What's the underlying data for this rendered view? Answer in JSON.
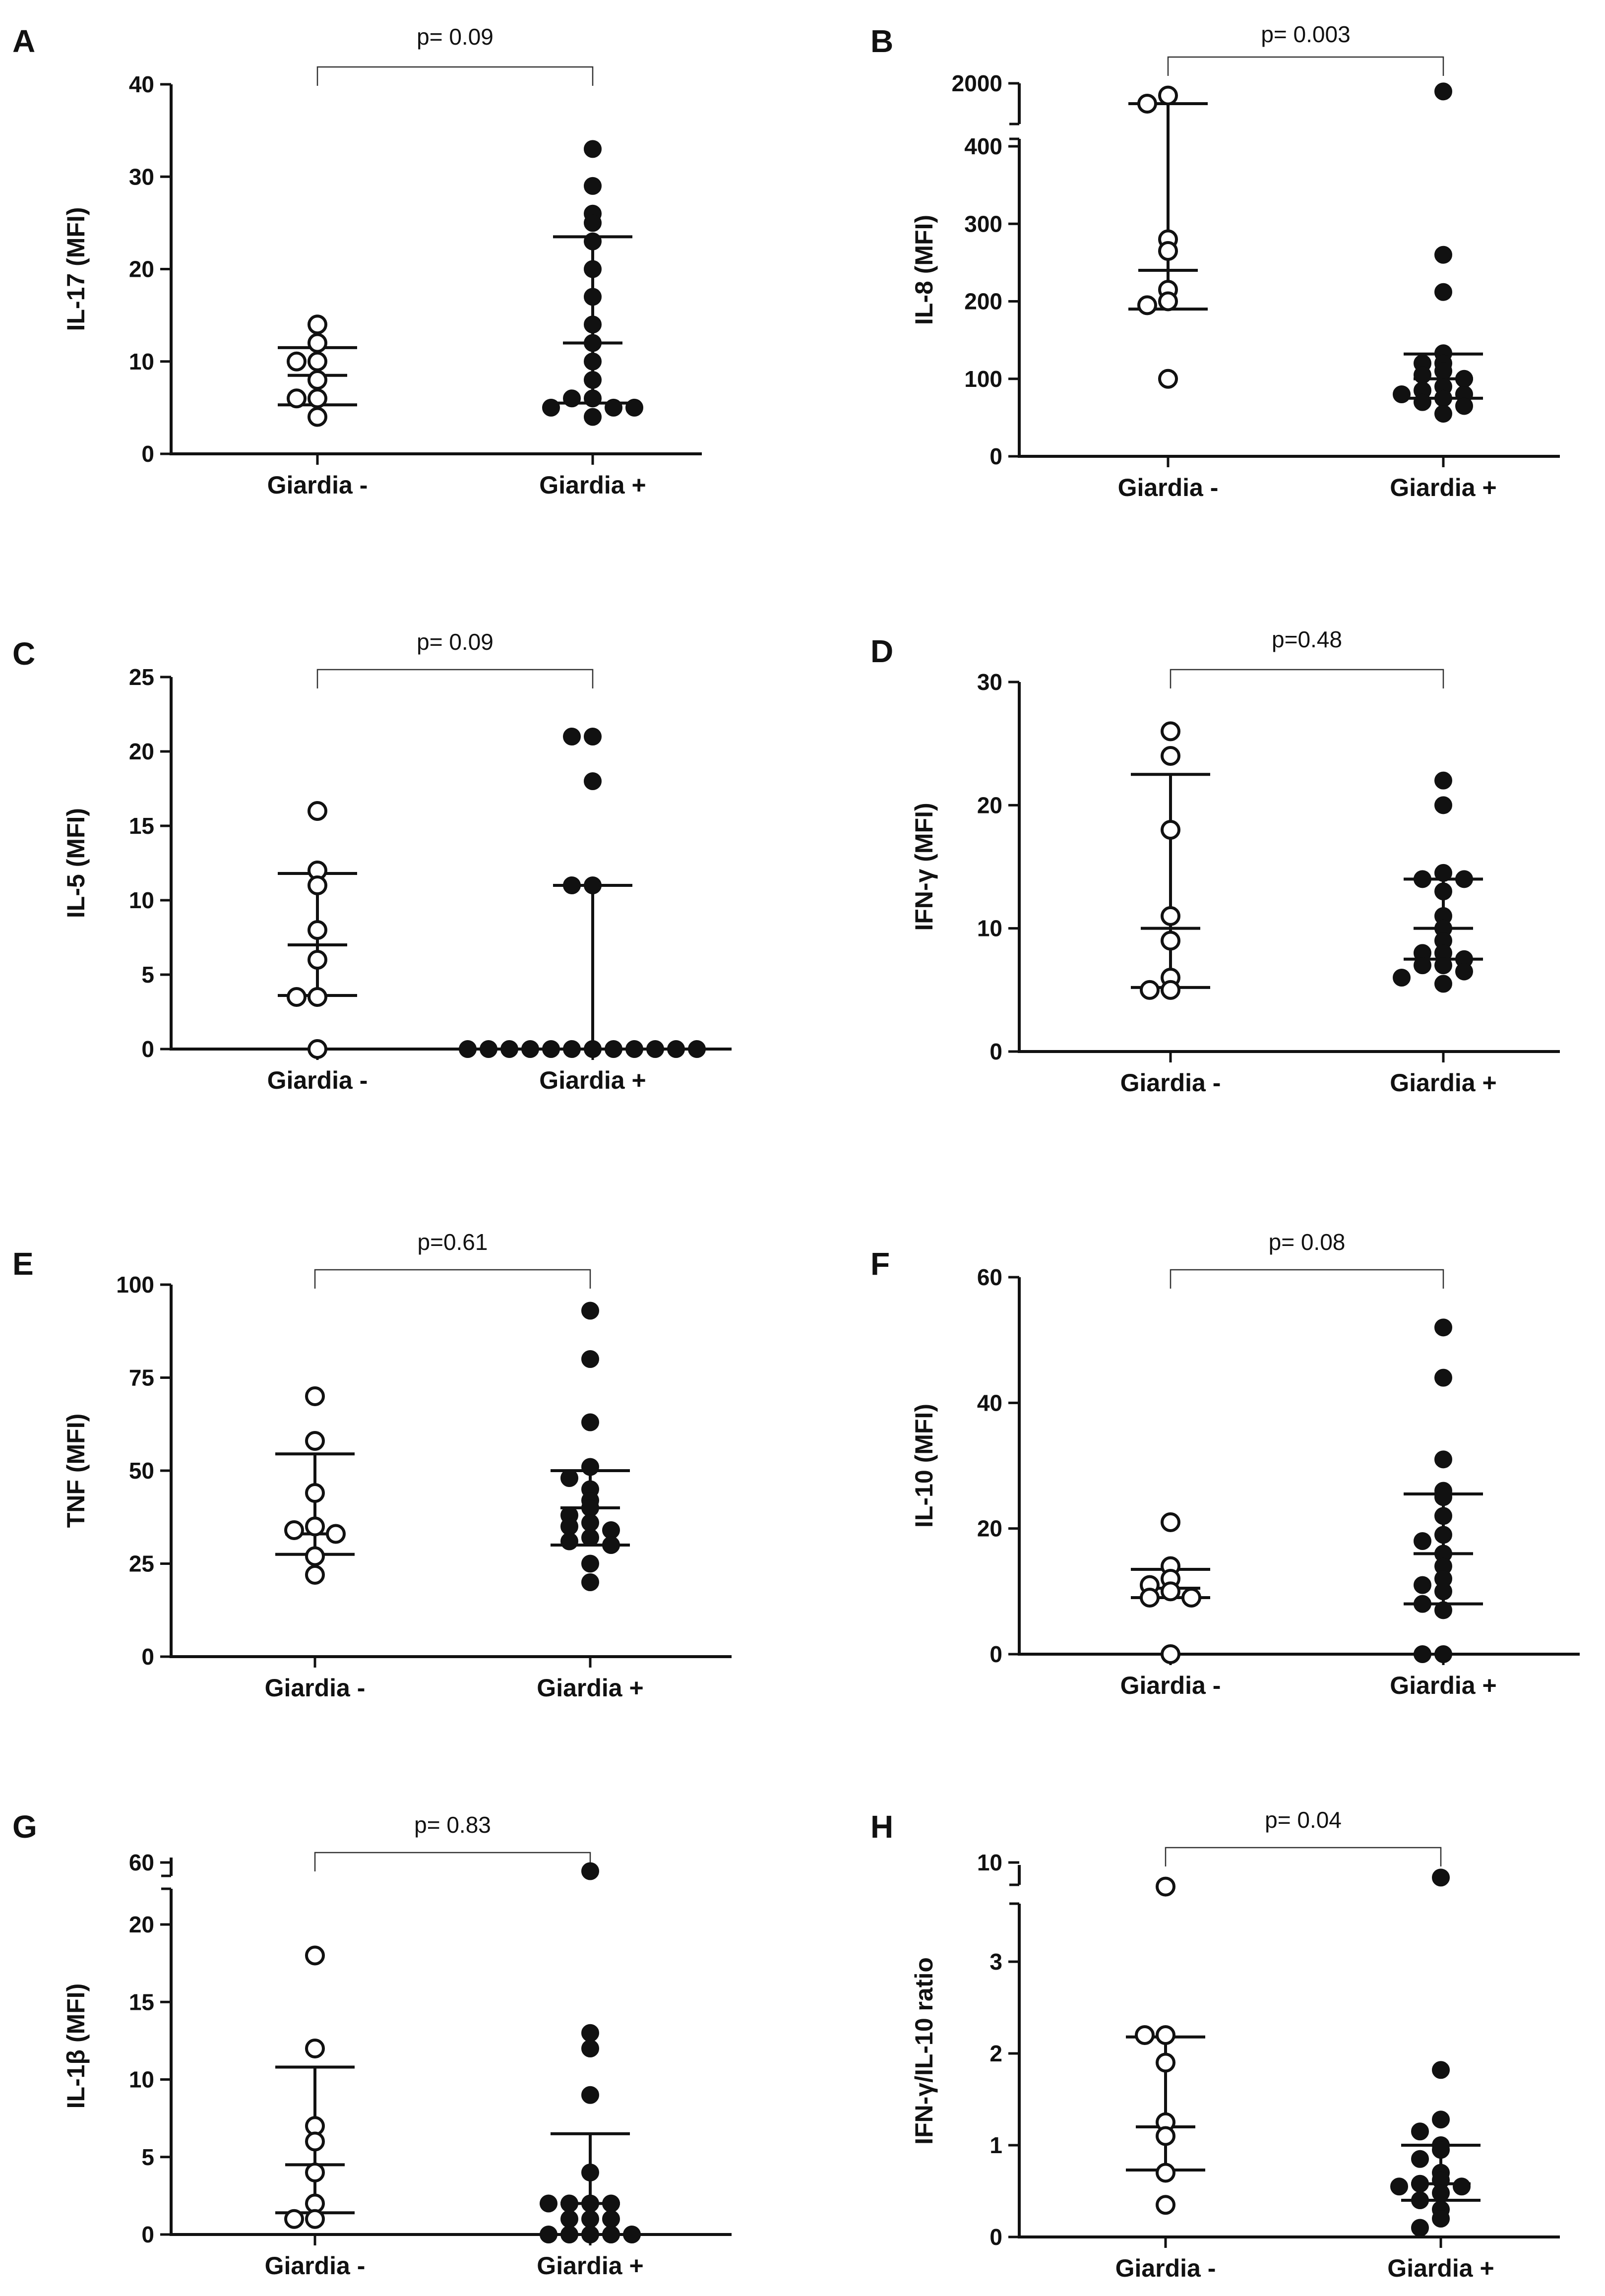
{
  "figure": {
    "xcat": [
      "Giardia -",
      "Giardia +"
    ]
  },
  "chart_data": [
    {
      "type": "scatter",
      "panel": "A",
      "ylabel": "IL-17 (MFI)",
      "p_label": "p= 0.09",
      "yticks": [
        "0",
        "10",
        "20",
        "30",
        "40"
      ],
      "ylim": [
        0,
        40
      ],
      "neg": [
        14,
        12,
        10,
        10,
        8,
        6,
        6,
        4
      ],
      "pos": [
        33,
        29,
        26,
        25,
        23,
        20,
        17,
        14,
        12,
        10,
        8,
        6,
        6,
        5,
        5,
        5,
        4
      ],
      "bars": {
        "neg": [
          5.3,
          8.5,
          11.5
        ],
        "pos": [
          5.5,
          12,
          23.5
        ]
      }
    },
    {
      "type": "scatter",
      "panel": "B",
      "ylabel": "IL-8 (MFI)",
      "p_label": "p= 0.003",
      "yticks": [
        "0",
        "100",
        "200",
        "300",
        "400",
        "2000"
      ],
      "ylim": [
        0,
        2000
      ],
      "neg": [
        1700,
        1500,
        280,
        265,
        215,
        200,
        195,
        100
      ],
      "pos": [
        1800,
        260,
        212,
        133,
        120,
        120,
        110,
        105,
        100,
        90,
        85,
        80,
        80,
        75,
        70,
        65,
        55
      ],
      "bars": {
        "neg": [
          190,
          240,
          1500
        ],
        "pos": [
          75,
          100,
          132
        ]
      }
    },
    {
      "type": "scatter",
      "panel": "C",
      "ylabel": "IL-5 (MFI)",
      "p_label": "p= 0.09",
      "yticks": [
        "0",
        "5",
        "10",
        "15",
        "20",
        "25"
      ],
      "ylim": [
        0,
        25
      ],
      "neg": [
        16,
        12,
        11,
        8,
        6,
        3.5,
        3.5,
        0
      ],
      "pos": [
        21,
        21,
        18,
        11,
        11,
        0,
        0,
        0,
        0,
        0,
        0,
        0,
        0,
        0,
        0,
        0,
        0
      ],
      "bars": {
        "neg": [
          3.6,
          7,
          11.8
        ],
        "pos": [
          0,
          0,
          11
        ]
      }
    },
    {
      "type": "scatter",
      "panel": "D",
      "ylabel": "IFN-γ (MFI)",
      "p_label": "p=0.48",
      "yticks": [
        "0",
        "10",
        "20",
        "30"
      ],
      "ylim": [
        0,
        30
      ],
      "neg": [
        26,
        24,
        18,
        11,
        9,
        6,
        5,
        5
      ],
      "pos": [
        22,
        20,
        14.5,
        14,
        14,
        13,
        11,
        10,
        9,
        8,
        8,
        7.5,
        7,
        7,
        6.5,
        6,
        5.5
      ],
      "bars": {
        "neg": [
          5.2,
          10,
          22.5
        ],
        "pos": [
          7.5,
          10,
          14
        ]
      }
    },
    {
      "type": "scatter",
      "panel": "E",
      "ylabel": "TNF (MFI)",
      "p_label": "p=0.61",
      "yticks": [
        "0",
        "25",
        "50",
        "75",
        "100"
      ],
      "ylim": [
        0,
        100
      ],
      "neg": [
        70,
        58,
        44,
        35,
        34,
        33,
        27,
        22
      ],
      "pos": [
        93,
        80,
        63,
        51,
        48,
        45,
        42,
        40,
        38,
        36,
        35,
        34,
        32,
        31,
        30,
        25,
        20
      ],
      "bars": {
        "neg": [
          27.5,
          33,
          54.5
        ],
        "pos": [
          30,
          40,
          50
        ]
      }
    },
    {
      "type": "scatter",
      "panel": "F",
      "ylabel": "IL-10 (MFI)",
      "p_label": "p= 0.08",
      "yticks": [
        "0",
        "20",
        "40",
        "60"
      ],
      "ylim": [
        0,
        60
      ],
      "neg": [
        21,
        14,
        12,
        11,
        10,
        9,
        9,
        0
      ],
      "pos": [
        52,
        44,
        31,
        26,
        25,
        22,
        19,
        18,
        16,
        14,
        12,
        11,
        10,
        8,
        7,
        0,
        0
      ],
      "bars": {
        "neg": [
          9,
          10.5,
          13.5
        ],
        "pos": [
          8,
          16,
          25.5
        ]
      }
    },
    {
      "type": "scatter",
      "panel": "G",
      "ylabel": "IL-1β (MFI)",
      "p_label": "p= 0.83",
      "yticks": [
        "0",
        "5",
        "10",
        "15",
        "20",
        "60"
      ],
      "ylim": [
        0,
        60
      ],
      "neg": [
        18,
        12,
        7,
        6,
        4,
        2,
        1,
        1
      ],
      "pos": [
        50,
        13,
        12,
        9,
        4,
        2,
        2,
        2,
        2,
        1,
        1,
        1,
        0,
        0,
        0,
        0,
        0
      ],
      "bars": {
        "neg": [
          1.4,
          4.5,
          10.8
        ],
        "pos": [
          0,
          2,
          6.5
        ]
      }
    },
    {
      "type": "scatter",
      "panel": "H",
      "ylabel": "IFN-γ/IL-10 ratio",
      "p_label": "p= 0.04",
      "yticks": [
        "0",
        "1",
        "2",
        "3",
        "10"
      ],
      "ylim": [
        0,
        10
      ],
      "neg": [
        6,
        2.2,
        2.2,
        1.9,
        1.25,
        1.1,
        0.7,
        0.35
      ],
      "pos": [
        7.5,
        1.82,
        1.28,
        1.15,
        1.0,
        0.95,
        0.85,
        0.7,
        0.62,
        0.58,
        0.55,
        0.55,
        0.48,
        0.4,
        0.3,
        0.2,
        0.1
      ],
      "bars": {
        "neg": [
          0.73,
          1.2,
          2.18
        ],
        "pos": [
          0.4,
          0.58,
          1.0
        ]
      }
    }
  ]
}
